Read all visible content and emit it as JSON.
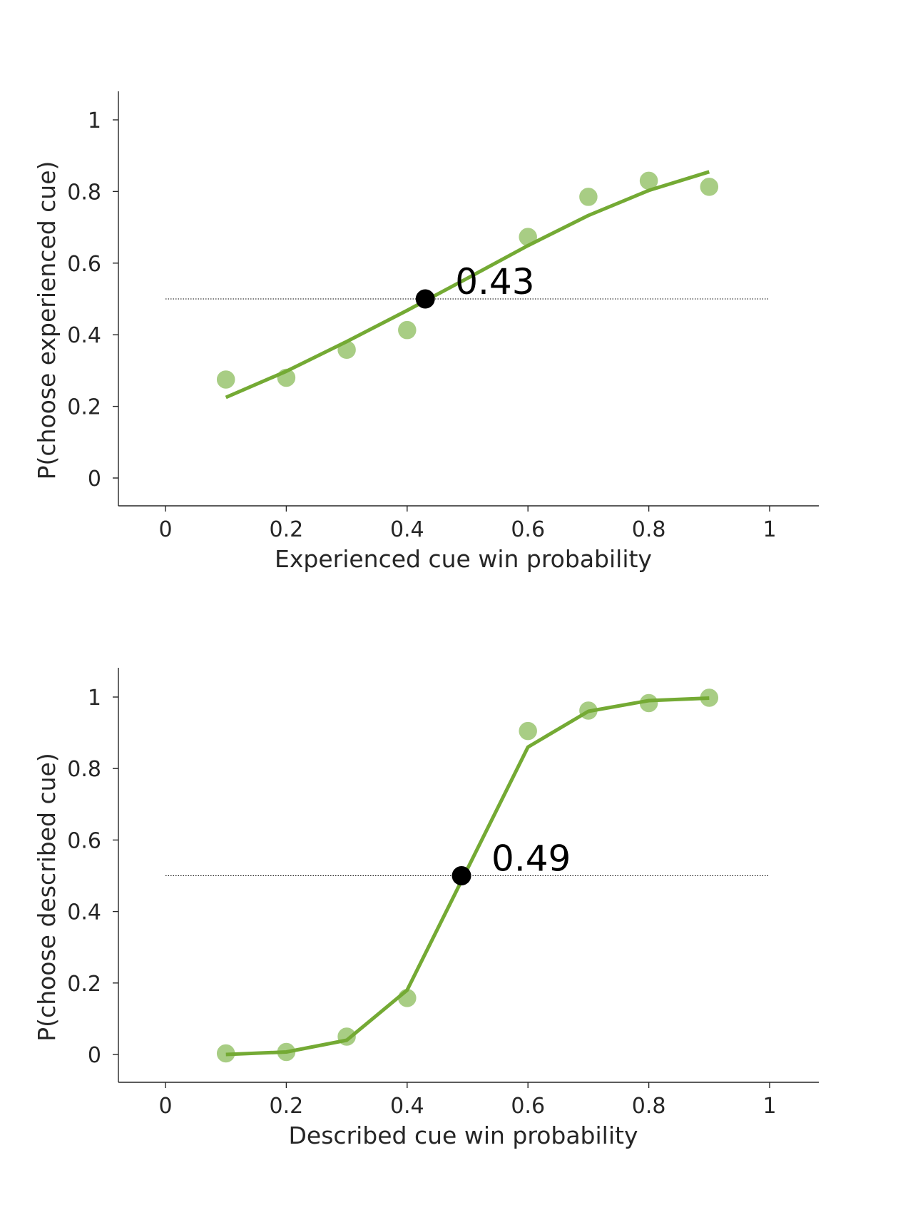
{
  "colors": {
    "line": "#74aa34",
    "points": "#a8cd84",
    "threshold": "#000000",
    "axis": "#262626"
  },
  "chart_data": [
    {
      "type": "line",
      "name": "experienced",
      "xlabel": "Experienced cue win probability",
      "ylabel": "P(choose experienced cue)",
      "xlim": [
        -0.08,
        1.08
      ],
      "ylim": [
        -0.08,
        1.08
      ],
      "xticks": [
        0,
        0.2,
        0.4,
        0.6,
        0.8,
        1
      ],
      "xtick_labels": [
        "0",
        "0.2",
        "0.4",
        "0.6",
        "0.8",
        "1"
      ],
      "yticks": [
        0,
        0.2,
        0.4,
        0.6,
        0.8,
        1
      ],
      "ytick_labels": [
        "0",
        "0.2",
        "0.4",
        "0.6",
        "0.8",
        "1"
      ],
      "grid": false,
      "reference_line": {
        "y": 0.5,
        "x_range": [
          0,
          1
        ]
      },
      "scatter": {
        "x": [
          0.1,
          0.2,
          0.3,
          0.4,
          0.6,
          0.7,
          0.8,
          0.9
        ],
        "y": [
          0.275,
          0.28,
          0.358,
          0.413,
          0.673,
          0.785,
          0.83,
          0.813
        ]
      },
      "fit": {
        "x": [
          0.1,
          0.2,
          0.3,
          0.4,
          0.5,
          0.6,
          0.7,
          0.8,
          0.9
        ],
        "y": [
          0.225,
          0.298,
          0.381,
          0.468,
          0.558,
          0.649,
          0.733,
          0.803,
          0.855
        ]
      },
      "threshold": {
        "x": 0.43,
        "y": 0.5,
        "label": "0.43"
      }
    },
    {
      "type": "line",
      "name": "described",
      "xlabel": "Described cue win probability",
      "ylabel": "P(choose described cue)",
      "xlim": [
        -0.08,
        1.08
      ],
      "ylim": [
        -0.08,
        1.08
      ],
      "xticks": [
        0,
        0.2,
        0.4,
        0.6,
        0.8,
        1
      ],
      "xtick_labels": [
        "0",
        "0.2",
        "0.4",
        "0.6",
        "0.8",
        "1"
      ],
      "yticks": [
        0,
        0.2,
        0.4,
        0.6,
        0.8,
        1
      ],
      "ytick_labels": [
        "0",
        "0.2",
        "0.4",
        "0.6",
        "0.8",
        "1"
      ],
      "grid": false,
      "reference_line": {
        "y": 0.5,
        "x_range": [
          0,
          1
        ]
      },
      "scatter": {
        "x": [
          0.1,
          0.2,
          0.3,
          0.4,
          0.6,
          0.7,
          0.8,
          0.9
        ],
        "y": [
          0.003,
          0.007,
          0.05,
          0.158,
          0.905,
          0.962,
          0.983,
          0.998
        ]
      },
      "fit": {
        "x": [
          0.1,
          0.2,
          0.3,
          0.4,
          0.5,
          0.6,
          0.7,
          0.8,
          0.9
        ],
        "y": [
          0.0,
          0.007,
          0.04,
          0.18,
          0.52,
          0.86,
          0.96,
          0.99,
          0.997
        ]
      },
      "threshold": {
        "x": 0.49,
        "y": 0.5,
        "label": "0.49"
      }
    }
  ]
}
